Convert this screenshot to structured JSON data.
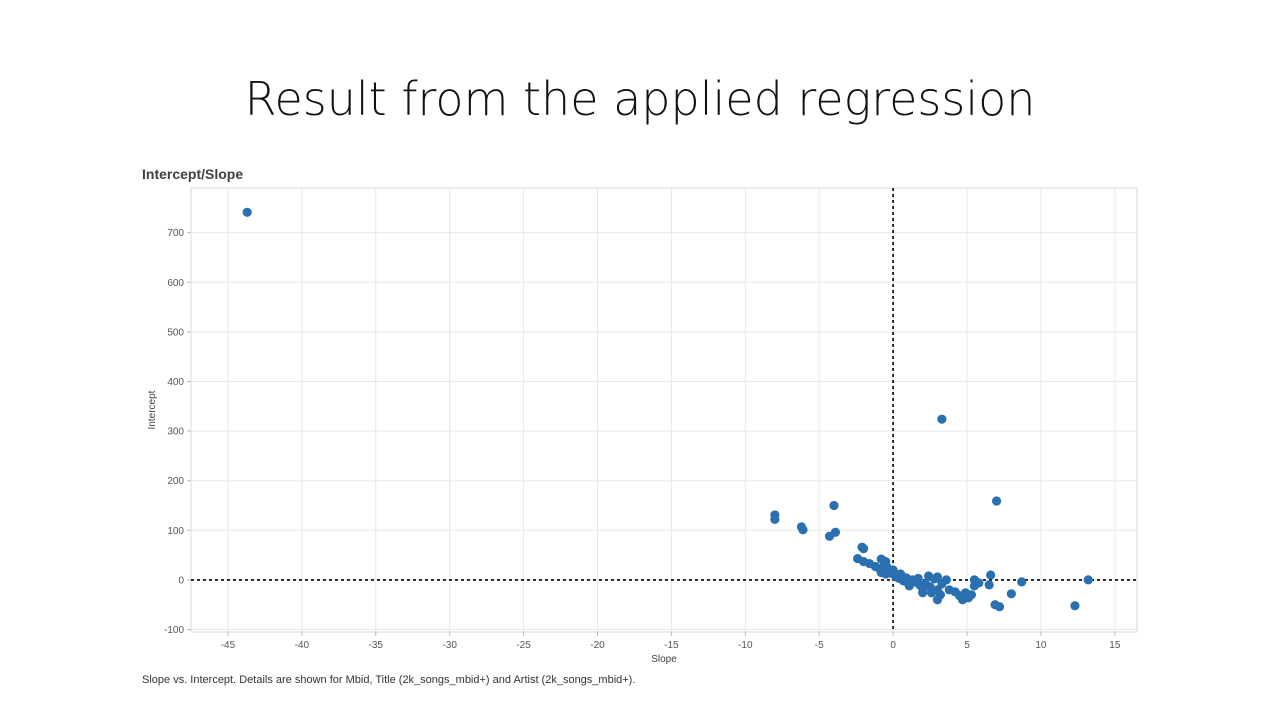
{
  "slide": {
    "title": "Result from the applied regression"
  },
  "chart_data": {
    "type": "scatter",
    "title": "Intercept/Slope",
    "xlabel": "Slope",
    "ylabel": "Intercept",
    "caption": "Slope vs. Intercept.  Details are shown for Mbid, Title (2k_songs_mbid+) and Artist (2k_songs_mbid+).",
    "xlim": [
      -47.5,
      16.5
    ],
    "ylim": [
      -105,
      790
    ],
    "xticks": [
      -45,
      -40,
      -35,
      -30,
      -25,
      -20,
      -15,
      -10,
      -5,
      0,
      5,
      10,
      15
    ],
    "yticks": [
      -100,
      0,
      100,
      200,
      300,
      400,
      500,
      600,
      700
    ],
    "grid": true,
    "reference_lines": {
      "x": 0,
      "y": 0,
      "style": "dashed"
    },
    "colors": {
      "point": "#2a6fb0",
      "grid": "#e8e8e8",
      "reference": "#000000"
    },
    "points": [
      {
        "x": -43.7,
        "y": 741
      },
      {
        "x": 3.3,
        "y": 324
      },
      {
        "x": 7.0,
        "y": 159
      },
      {
        "x": -4.0,
        "y": 150
      },
      {
        "x": -8.0,
        "y": 131
      },
      {
        "x": -8.0,
        "y": 122
      },
      {
        "x": -6.2,
        "y": 107
      },
      {
        "x": -6.1,
        "y": 101
      },
      {
        "x": -3.9,
        "y": 96
      },
      {
        "x": -4.3,
        "y": 88
      },
      {
        "x": -2.1,
        "y": 66
      },
      {
        "x": -2.0,
        "y": 63
      },
      {
        "x": -2.4,
        "y": 43
      },
      {
        "x": -2.0,
        "y": 37
      },
      {
        "x": -1.6,
        "y": 33
      },
      {
        "x": -0.8,
        "y": 42
      },
      {
        "x": -0.5,
        "y": 37
      },
      {
        "x": -1.2,
        "y": 27
      },
      {
        "x": -0.9,
        "y": 22
      },
      {
        "x": -0.6,
        "y": 30
      },
      {
        "x": -0.4,
        "y": 25
      },
      {
        "x": -0.3,
        "y": 18
      },
      {
        "x": -0.8,
        "y": 15
      },
      {
        "x": -0.5,
        "y": 12
      },
      {
        "x": -0.2,
        "y": 14
      },
      {
        "x": 0.0,
        "y": 20
      },
      {
        "x": 0.1,
        "y": 10
      },
      {
        "x": 0.2,
        "y": 6
      },
      {
        "x": 0.4,
        "y": 3
      },
      {
        "x": 0.5,
        "y": 12
      },
      {
        "x": 0.6,
        "y": 8
      },
      {
        "x": 0.7,
        "y": -2
      },
      {
        "x": 0.9,
        "y": 4
      },
      {
        "x": 1.0,
        "y": -6
      },
      {
        "x": 1.1,
        "y": -12
      },
      {
        "x": 1.3,
        "y": 0
      },
      {
        "x": 1.5,
        "y": -4
      },
      {
        "x": 1.7,
        "y": 3
      },
      {
        "x": 1.8,
        "y": -10
      },
      {
        "x": 2.0,
        "y": -18
      },
      {
        "x": 2.0,
        "y": -26
      },
      {
        "x": 2.2,
        "y": -8
      },
      {
        "x": 2.4,
        "y": 8
      },
      {
        "x": 2.5,
        "y": -14
      },
      {
        "x": 2.6,
        "y": -26
      },
      {
        "x": 2.8,
        "y": 2
      },
      {
        "x": 3.0,
        "y": -20
      },
      {
        "x": 3.0,
        "y": 6
      },
      {
        "x": 3.2,
        "y": -30
      },
      {
        "x": 3.3,
        "y": -8
      },
      {
        "x": 3.6,
        "y": 0
      },
      {
        "x": 3.8,
        "y": -20
      },
      {
        "x": 3.0,
        "y": -40
      },
      {
        "x": 4.2,
        "y": -24
      },
      {
        "x": 4.5,
        "y": -32
      },
      {
        "x": 4.7,
        "y": -40
      },
      {
        "x": 4.9,
        "y": -26
      },
      {
        "x": 5.1,
        "y": -36
      },
      {
        "x": 5.3,
        "y": -30
      },
      {
        "x": 5.5,
        "y": -12
      },
      {
        "x": 5.5,
        "y": 0
      },
      {
        "x": 5.8,
        "y": -6
      },
      {
        "x": 6.5,
        "y": -10
      },
      {
        "x": 6.6,
        "y": 10
      },
      {
        "x": 6.9,
        "y": -50
      },
      {
        "x": 7.2,
        "y": -54
      },
      {
        "x": 8.0,
        "y": -28
      },
      {
        "x": 8.7,
        "y": -4
      },
      {
        "x": 12.3,
        "y": -52
      },
      {
        "x": 13.2,
        "y": 0
      }
    ]
  }
}
